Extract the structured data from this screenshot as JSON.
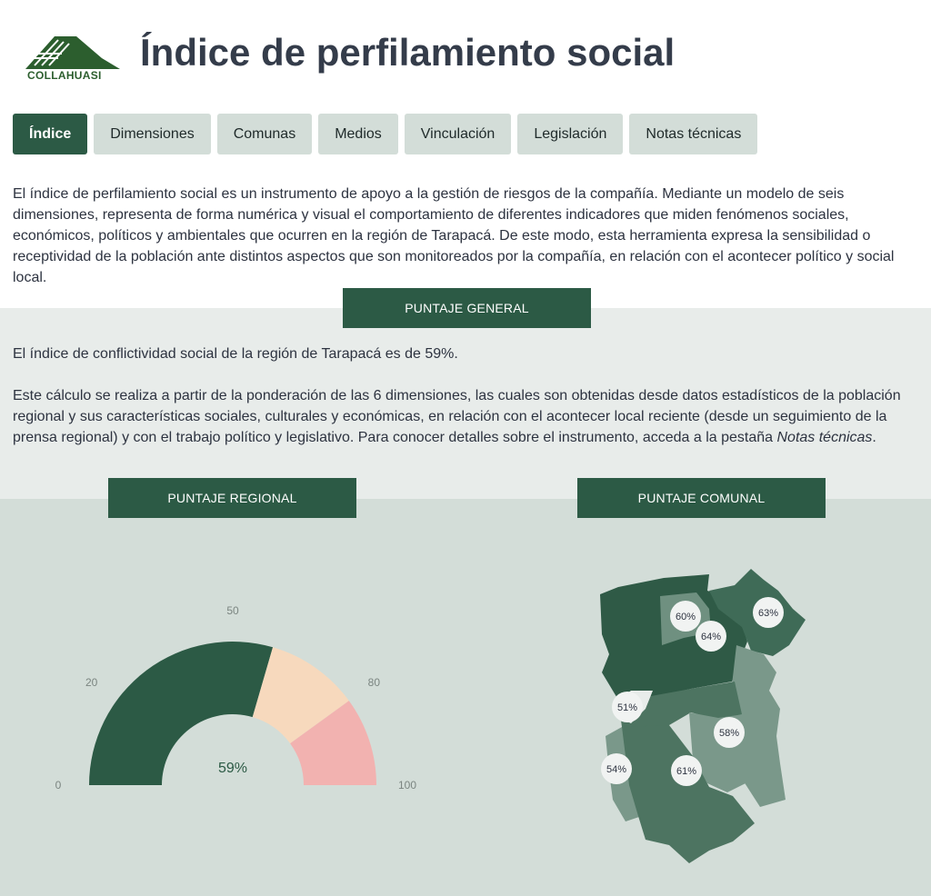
{
  "header": {
    "logo_text": "COLLAHUASI",
    "title": "Índice de perfilamiento social"
  },
  "tabs": [
    {
      "label": "Índice",
      "active": true
    },
    {
      "label": "Dimensiones",
      "active": false
    },
    {
      "label": "Comunas",
      "active": false
    },
    {
      "label": "Medios",
      "active": false
    },
    {
      "label": "Vinculación",
      "active": false
    },
    {
      "label": "Legislación",
      "active": false
    },
    {
      "label": "Notas técnicas",
      "active": false
    }
  ],
  "intro": "El índice de perfilamiento social es un instrumento de apoyo a la gestión de riesgos de la compañía. Mediante un modelo de seis dimensiones, representa de forma numérica y visual el comportamiento de diferentes indicadores que miden fenómenos sociales, económicos, políticos y ambientales que ocurren en la región de Tarapacá. De este modo, esta herramienta expresa la sensibilidad o receptividad de la población ante distintos aspectos que son monitoreados por la compañía, en relación con el acontecer político y social local.",
  "general": {
    "heading": "PUNTAJE GENERAL",
    "p1": "El índice de conflictividad social de la región de Tarapacá es de 59%.",
    "p2_before": "Este cálculo se realiza a partir de la ponderación de las 6 dimensiones, las cuales son obtenidas desde datos estadísticos de la población regional y sus características sociales, culturales y económicas, en relación con el acontecer local reciente (desde un seguimiento de la prensa regional) y con el trabajo político y legislativo. Para conocer detalles sobre el instrumento, acceda a la pestaña ",
    "p2_em": "Notas técnicas",
    "p2_after": "."
  },
  "regional": {
    "heading": "PUNTAJE REGIONAL"
  },
  "comunal": {
    "heading": "PUNTAJE COMUNAL",
    "labels": [
      "60%",
      "63%",
      "64%",
      "51%",
      "58%",
      "54%",
      "61%"
    ]
  },
  "chart_data": {
    "type": "gauge",
    "value": 59,
    "value_label": "59%",
    "min": 0,
    "max": 100,
    "ticks": [
      {
        "value": 0,
        "label": "0"
      },
      {
        "value": 20,
        "label": "20"
      },
      {
        "value": 50,
        "label": "50"
      },
      {
        "value": 80,
        "label": "80"
      },
      {
        "value": 100,
        "label": "100"
      }
    ],
    "bands": [
      {
        "from": 0,
        "to": 59,
        "color": "#2c5a45"
      },
      {
        "from": 59,
        "to": 80,
        "color": "#f7d9bd"
      },
      {
        "from": 80,
        "to": 100,
        "color": "#f2b2b0"
      }
    ]
  },
  "colors": {
    "accent": "#2c5a45",
    "tab_inactive": "#d3ddd8",
    "band_light": "#e8ecea",
    "band_mid": "#d3ddd8"
  }
}
